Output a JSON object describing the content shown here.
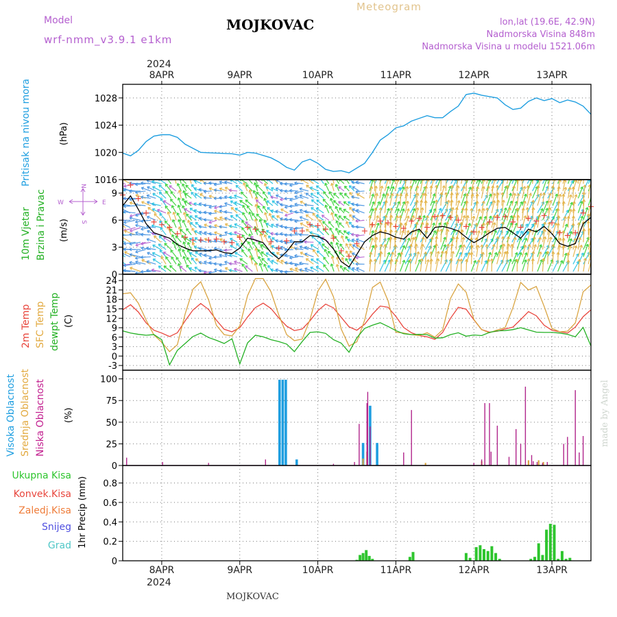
{
  "header": {
    "model_label": "Model",
    "model_name": "wrf-nmm_v3.9.1  e1km",
    "station": "MOJKOVAC",
    "product": "Meteogram",
    "lonlat": "lon,lat (19.6E, 42.9N)",
    "elev": "Nadmorska Visina 848m",
    "elev_model": "Nadmorska Visina u modelu 1521.06m",
    "year_top": "2024",
    "year_bottom": "2024",
    "footer_station": "MOJKOVAC",
    "credit": "made by Angel"
  },
  "compass": {
    "n": "N",
    "s": "S",
    "e": "E",
    "w": "W"
  },
  "colors": {
    "pressure": "#1e9ee0",
    "temp2m": "#e8453c",
    "sfc_temp": "#d9a441",
    "dewpoint": "#22b022",
    "wind_speed": "#000000",
    "gust": "#e8453c",
    "high_cloud": "#1e9ee0",
    "mid_cloud": "#d9a441",
    "low_cloud": "#b0248a",
    "precip_total": "#2ec52e",
    "label_magenta": "#b45fcf",
    "label_orange": "#e2a93f"
  },
  "chart_data": [
    {
      "type": "line",
      "title": "",
      "ylabel_side": "Pritisak na nivou mora",
      "ylabel": "(hPa)",
      "yticks": [
        1016,
        1020,
        1024,
        1028
      ],
      "ylim": [
        1016,
        1030
      ],
      "grid": true,
      "x_day_ticks": [
        "8APR",
        "9APR",
        "10APR",
        "11APR",
        "12APR",
        "13APR"
      ],
      "x_range_days": [
        -0.5,
        5.5
      ],
      "series": [
        {
          "name": "",
          "x": [
            -0.5,
            -0.4,
            -0.3,
            -0.2,
            -0.1,
            0.0,
            0.1,
            0.2,
            0.3,
            0.5,
            0.7,
            0.9,
            1.0,
            1.1,
            1.2,
            1.4,
            1.5,
            1.6,
            1.7,
            1.8,
            1.9,
            2.0,
            2.1,
            2.2,
            2.3,
            2.4,
            2.5,
            2.6,
            2.7,
            2.8,
            2.9,
            3.0,
            3.1,
            3.2,
            3.3,
            3.4,
            3.5,
            3.6,
            3.7,
            3.8,
            3.9,
            4.0,
            4.1,
            4.2,
            4.3,
            4.4,
            4.5,
            4.6,
            4.7,
            4.8,
            4.9,
            5.0,
            5.1,
            5.2,
            5.3,
            5.4,
            5.5
          ],
          "values": [
            1019.9,
            1019.5,
            1020.3,
            1021.6,
            1022.4,
            1022.6,
            1022.6,
            1022.2,
            1021.2,
            1020.0,
            1019.9,
            1019.8,
            1019.6,
            1020.0,
            1019.9,
            1019.2,
            1018.6,
            1017.8,
            1017.4,
            1018.6,
            1019.0,
            1018.4,
            1017.5,
            1017.2,
            1017.3,
            1017.0,
            1017.7,
            1018.4,
            1020.0,
            1021.8,
            1022.6,
            1023.6,
            1023.9,
            1024.6,
            1025.0,
            1025.4,
            1025.1,
            1025.1,
            1026.0,
            1026.8,
            1028.5,
            1028.7,
            1028.4,
            1028.2,
            1028.0,
            1027.0,
            1026.3,
            1026.5,
            1027.5,
            1028.0,
            1027.6,
            1027.9,
            1027.3,
            1027.7,
            1027.4,
            1026.8,
            1025.6
          ]
        }
      ]
    },
    {
      "type": "line",
      "title": "",
      "ylabel_side": "10m Vjetar",
      "ylabel_side2": "Brzina i Pravac",
      "ylabel": "(m/s)",
      "yticks": [
        0,
        3,
        6,
        9
      ],
      "ylim": [
        0,
        10.5
      ],
      "grid": true,
      "series": [
        {
          "name": "",
          "x": [
            -0.5,
            -0.4,
            -0.3,
            -0.2,
            -0.1,
            0.0,
            0.1,
            0.2,
            0.3,
            0.4,
            0.5,
            0.6,
            0.7,
            0.8,
            0.9,
            1.0,
            1.1,
            1.2,
            1.3,
            1.4,
            1.5,
            1.6,
            1.7,
            1.8,
            1.9,
            2.0,
            2.1,
            2.2,
            2.3,
            2.4,
            2.5,
            2.6,
            2.7,
            2.8,
            2.9,
            3.0,
            3.1,
            3.2,
            3.3,
            3.4,
            3.5,
            3.6,
            3.7,
            3.8,
            3.9,
            4.0,
            4.1,
            4.2,
            4.3,
            4.4,
            4.5,
            4.6,
            4.7,
            4.8,
            4.9,
            5.0,
            5.1,
            5.2,
            5.3,
            5.4,
            5.5
          ],
          "values": [
            7.6,
            8.7,
            7.2,
            5.6,
            4.6,
            4.3,
            4.0,
            3.3,
            2.9,
            2.6,
            2.6,
            2.6,
            2.7,
            2.4,
            2.3,
            2.9,
            4.0,
            3.8,
            3.5,
            2.4,
            1.7,
            2.5,
            3.6,
            3.6,
            4.3,
            4.2,
            3.8,
            2.8,
            1.4,
            0.8,
            2.2,
            3.6,
            4.3,
            4.7,
            4.5,
            4.1,
            3.9,
            4.7,
            5.0,
            4.0,
            5.2,
            5.3,
            5.1,
            4.8,
            4.1,
            3.5,
            4.0,
            4.6,
            5.1,
            5.2,
            4.6,
            4.0,
            5.0,
            4.7,
            5.3,
            4.5,
            3.4,
            3.1,
            3.4,
            5.6,
            6.3
          ]
        }
      ]
    },
    {
      "type": "line",
      "title": "",
      "legend": [
        "2m Temp",
        "SFC Temp",
        "dewpt Temp"
      ],
      "ylabel": "(C)",
      "yticks": [
        -3,
        0,
        3,
        6,
        9,
        12,
        15,
        18,
        21,
        24
      ],
      "ylim": [
        -4.5,
        26
      ],
      "grid": true,
      "series": [
        {
          "name": "2m Temp",
          "x": [
            -0.5,
            -0.4,
            -0.3,
            -0.2,
            -0.1,
            0.0,
            0.1,
            0.2,
            0.3,
            0.4,
            0.5,
            0.6,
            0.7,
            0.8,
            0.9,
            1.0,
            1.1,
            1.2,
            1.3,
            1.4,
            1.5,
            1.6,
            1.7,
            1.8,
            1.9,
            2.0,
            2.1,
            2.2,
            2.3,
            2.4,
            2.5,
            2.6,
            2.7,
            2.8,
            2.9,
            3.0,
            3.1,
            3.2,
            3.3,
            3.4,
            3.5,
            3.6,
            3.7,
            3.8,
            3.9,
            4.0,
            4.1,
            4.2,
            4.3,
            4.4,
            4.5,
            4.6,
            4.7,
            4.8,
            4.9,
            5.0,
            5.1,
            5.2,
            5.3,
            5.4,
            5.5
          ],
          "values": [
            14.7,
            16.3,
            14.0,
            10.5,
            8.2,
            7.3,
            6.2,
            7.4,
            11.2,
            14.6,
            16.7,
            14.8,
            11.4,
            8.5,
            7.7,
            9.0,
            12.4,
            15.4,
            16.8,
            15.1,
            12.1,
            9.5,
            8.1,
            8.6,
            11.2,
            14.4,
            16.5,
            15.3,
            12.3,
            9.3,
            8.2,
            10.1,
            13.3,
            15.9,
            15.5,
            12.6,
            9.1,
            7.4,
            6.5,
            6.1,
            5.3,
            7.5,
            12.0,
            15.5,
            14.9,
            11.5,
            8.4,
            7.6,
            7.9,
            8.6,
            9.2,
            11.6,
            14.1,
            12.8,
            9.8,
            8.2,
            7.7,
            7.3,
            9.2,
            12.5,
            14.7
          ]
        },
        {
          "name": "SFC Temp",
          "x": [
            -0.5,
            -0.4,
            -0.3,
            -0.2,
            -0.1,
            0.0,
            0.1,
            0.2,
            0.3,
            0.4,
            0.5,
            0.6,
            0.7,
            0.8,
            0.9,
            1.0,
            1.1,
            1.2,
            1.3,
            1.4,
            1.5,
            1.6,
            1.7,
            1.8,
            1.9,
            2.0,
            2.1,
            2.2,
            2.3,
            2.4,
            2.5,
            2.6,
            2.7,
            2.8,
            2.9,
            3.0,
            3.1,
            3.2,
            3.3,
            3.4,
            3.5,
            3.6,
            3.7,
            3.8,
            3.9,
            4.0,
            4.1,
            4.2,
            4.3,
            4.4,
            4.5,
            4.6,
            4.7,
            4.8,
            4.9,
            5.0,
            5.1,
            5.2,
            5.3,
            5.4,
            5.5
          ],
          "values": [
            19.8,
            20.1,
            16.8,
            11.4,
            6.7,
            4.4,
            1.4,
            3.6,
            13.4,
            21.2,
            23.6,
            17.9,
            9.8,
            6.8,
            6.4,
            9.6,
            19.2,
            24.6,
            24.6,
            20.4,
            13.0,
            6.8,
            4.9,
            5.4,
            11.6,
            20.6,
            24.4,
            18.8,
            8.6,
            3.2,
            4.5,
            11.4,
            21.8,
            23.5,
            17.6,
            7.6,
            7.3,
            6.8,
            6.5,
            7.4,
            6.0,
            8.3,
            18.3,
            22.9,
            20.3,
            11.6,
            8.4,
            7.4,
            8.3,
            9.0,
            15.4,
            23.4,
            21.0,
            22.1,
            15.8,
            8.8,
            7.7,
            7.9,
            10.5,
            20.4,
            22.6
          ]
        },
        {
          "name": "dewpt Temp",
          "x": [
            -0.5,
            -0.4,
            -0.3,
            -0.2,
            -0.1,
            0.0,
            0.1,
            0.2,
            0.3,
            0.4,
            0.5,
            0.6,
            0.7,
            0.8,
            0.9,
            1.0,
            1.1,
            1.2,
            1.3,
            1.4,
            1.5,
            1.6,
            1.7,
            1.8,
            1.9,
            2.0,
            2.1,
            2.2,
            2.3,
            2.4,
            2.5,
            2.6,
            2.7,
            2.8,
            2.9,
            3.0,
            3.1,
            3.2,
            3.3,
            3.4,
            3.5,
            3.6,
            3.7,
            3.8,
            3.9,
            4.0,
            4.1,
            4.2,
            4.3,
            4.4,
            4.5,
            4.6,
            4.7,
            4.8,
            4.9,
            5.0,
            5.1,
            5.2,
            5.3,
            5.4,
            5.5
          ],
          "values": [
            8.0,
            7.3,
            6.9,
            6.6,
            6.8,
            5.2,
            -2.8,
            1.8,
            4.0,
            6.2,
            7.3,
            5.9,
            5.0,
            4.0,
            5.5,
            -2.5,
            4.2,
            6.6,
            6.1,
            5.2,
            4.6,
            3.8,
            1.4,
            4.6,
            7.5,
            7.7,
            7.2,
            5.2,
            4.1,
            1.2,
            5.8,
            8.8,
            9.8,
            10.6,
            9.4,
            8.1,
            7.1,
            6.8,
            6.9,
            6.8,
            5.7,
            5.8,
            6.8,
            7.4,
            6.3,
            6.7,
            6.5,
            7.5,
            8.0,
            8.1,
            8.4,
            9.0,
            8.3,
            7.6,
            7.5,
            7.5,
            7.3,
            6.9,
            6.1,
            9.1,
            3.2
          ]
        }
      ]
    },
    {
      "type": "bar",
      "title": "",
      "legend": [
        "Visoka Oblacnost",
        "Srednja Oblacnost",
        "Niska Oblacnost"
      ],
      "ylabel": "(%)",
      "yticks": [
        0,
        25,
        50,
        75,
        100
      ],
      "ylim": [
        0,
        110
      ],
      "grid": true,
      "series": [
        {
          "name": "Visoka Oblacnost",
          "x": [
            1.51,
            1.55,
            1.59,
            1.73,
            2.58,
            2.67,
            2.76
          ],
          "values": [
            99,
            99,
            99,
            7,
            26,
            69,
            26
          ]
        },
        {
          "name": "Srednja Oblacnost",
          "x": [
            2.58,
            2.63,
            3.38,
            4.1,
            4.7,
            4.83,
            4.89
          ],
          "values": [
            8,
            16,
            3,
            5,
            6,
            6,
            4
          ]
        },
        {
          "name": "Niska Oblacnost",
          "x": [
            -0.45,
            0.01,
            0.6,
            1.33,
            2.2,
            2.47,
            2.53,
            2.63,
            2.64,
            2.67,
            3.1,
            3.2,
            4.0,
            4.1,
            4.14,
            4.2,
            4.22,
            4.3,
            4.45,
            4.54,
            4.6,
            4.66,
            4.74,
            4.76,
            4.81,
            4.88,
            4.94,
            5.15,
            5.2,
            5.3,
            5.35,
            5.4
          ],
          "values": [
            9,
            4,
            3,
            7,
            2,
            4,
            48,
            72,
            85,
            45,
            15,
            64,
            3,
            7,
            72,
            72,
            16,
            46,
            10,
            42,
            25,
            91,
            12,
            5,
            4,
            3,
            4,
            25,
            33,
            87,
            15,
            34
          ]
        }
      ]
    },
    {
      "type": "bar",
      "title": "",
      "legend": [
        "Ukupna Kisa",
        "Konvek.Kisa",
        "Zaledj.Kisa",
        "Snijeg",
        "Grad"
      ],
      "ylabel": "1hr Precip (mm)",
      "yticks": [
        0,
        0.2,
        0.4,
        0.6,
        0.8
      ],
      "ylim": [
        0,
        0.98
      ],
      "grid": true,
      "series": [
        {
          "name": "Ukupna Kisa",
          "x": [
            2.5,
            2.54,
            2.58,
            2.62,
            2.66,
            2.7,
            3.18,
            3.22,
            3.9,
            3.95,
            4.03,
            4.08,
            4.13,
            4.18,
            4.23,
            4.28,
            4.33,
            4.73,
            4.78,
            4.83,
            4.88,
            4.93,
            4.98,
            5.03,
            5.08,
            5.13,
            5.18,
            5.23
          ],
          "values": [
            0.01,
            0.06,
            0.08,
            0.11,
            0.05,
            0.02,
            0.04,
            0.09,
            0.08,
            0.03,
            0.14,
            0.16,
            0.12,
            0.1,
            0.15,
            0.08,
            0.02,
            0.02,
            0.04,
            0.18,
            0.06,
            0.32,
            0.38,
            0.37,
            0.02,
            0.1,
            0.02,
            0.03
          ]
        }
      ]
    }
  ]
}
